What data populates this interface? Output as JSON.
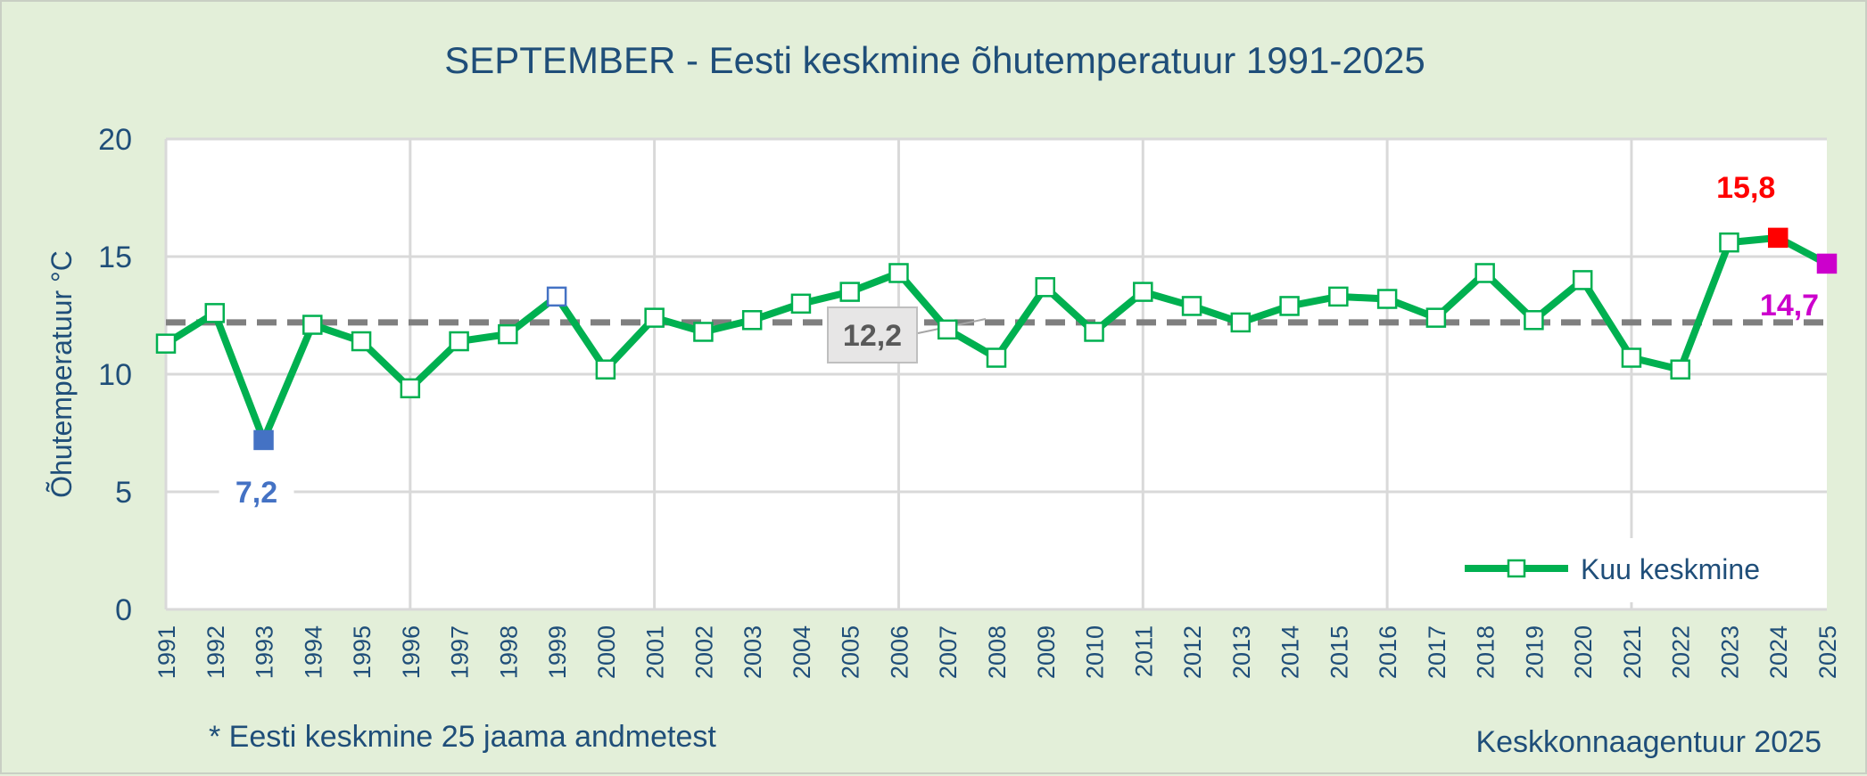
{
  "chart_data": {
    "type": "line",
    "title": "SEPTEMBER - Eesti keskmine õhutemperatuur 1991-2025",
    "ylabel": "Õhutemperatuur °C",
    "xlabel": "",
    "ylim": [
      0,
      20
    ],
    "yticks": [
      "0",
      "5",
      "10",
      "15",
      "20"
    ],
    "grid": true,
    "legend_position": "bottom-right",
    "categories": [
      "1991",
      "1992",
      "1993",
      "1994",
      "1995",
      "1996",
      "1997",
      "1998",
      "1999",
      "2000",
      "2001",
      "2002",
      "2003",
      "2004",
      "2005",
      "2006",
      "2007",
      "2008",
      "2009",
      "2010",
      "2011",
      "2012",
      "2013",
      "2014",
      "2015",
      "2016",
      "2017",
      "2018",
      "2019",
      "2020",
      "2021",
      "2022",
      "2023",
      "2024",
      "2025"
    ],
    "series": [
      {
        "name": "Kuu keskmine",
        "color": "#00b050",
        "values": [
          11.3,
          12.6,
          7.2,
          12.1,
          11.4,
          9.4,
          11.4,
          11.7,
          13.3,
          10.2,
          12.4,
          11.8,
          12.3,
          13.0,
          13.5,
          14.3,
          11.9,
          10.7,
          13.7,
          11.8,
          13.5,
          12.9,
          12.2,
          12.9,
          13.3,
          13.2,
          12.4,
          14.3,
          12.3,
          14.0,
          10.7,
          10.2,
          15.6,
          15.8,
          14.7
        ]
      }
    ],
    "average": {
      "value": 12.2,
      "label": "12,2",
      "color": "#7f7f7f"
    },
    "highlights": [
      {
        "category": "1993",
        "label": "7,2",
        "color": "#4472c4",
        "filled": true
      },
      {
        "category": "1999",
        "label": "",
        "color": "#4472c4",
        "filled": false
      },
      {
        "category": "2024",
        "label": "15,8",
        "color": "#ff0000",
        "filled": true
      },
      {
        "category": "2025",
        "label": "14,7",
        "color": "#cc00cc",
        "filled": true
      }
    ]
  },
  "footnote_left": "* Eesti keskmine 25 jaama andmetest",
  "footnote_right": "Keskkonnaagentuur 2025",
  "colors": {
    "background": "#e3efd9",
    "plot_bg": "#ffffff",
    "grid": "#d9d9d9",
    "text": "#1f4e79"
  }
}
